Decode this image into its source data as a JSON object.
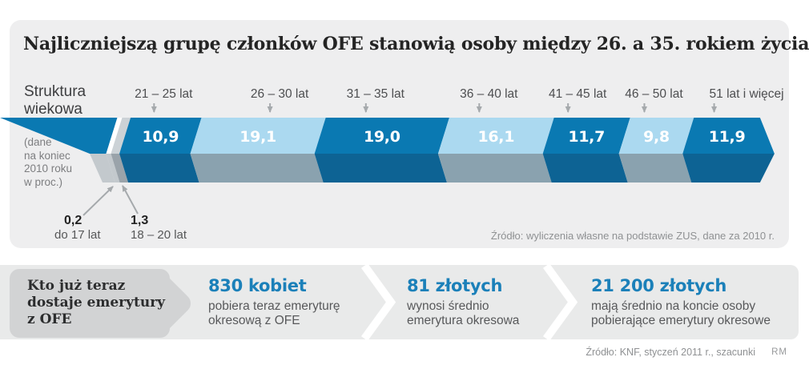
{
  "title": "Najliczniejszą grupę członków OFE stanowią osoby między 26. a 35. rokiem życia",
  "chart_data": {
    "type": "bar",
    "subtype": "stacked-horizontal-percent",
    "axis_label": "Struktura\nwiekowa",
    "note": "(dane\nna koniec\n2010 roku\nw proc.)",
    "source": "Źródło: wyliczenia własne na podstawie ZUS, dane za 2010 r.",
    "unit": "proc.",
    "categories": [
      "do 17 lat",
      "18 – 20 lat",
      "21 – 25 lat",
      "26 – 30 lat",
      "31 – 35 lat",
      "36 – 40 lat",
      "41 – 45 lat",
      "46 – 50 lat",
      "51 lat i więcej"
    ],
    "values": [
      0.2,
      1.3,
      10.9,
      19.1,
      19.0,
      16.1,
      11.7,
      9.8,
      11.9
    ],
    "value_labels": [
      "0,2",
      "1,3",
      "10,9",
      "19,1",
      "19,0",
      "16,1",
      "11,7",
      "9,8",
      "11,9"
    ],
    "segment_styles": [
      "white",
      "gray",
      "dark",
      "light",
      "dark",
      "light",
      "dark",
      "light",
      "dark"
    ],
    "colors": {
      "dark_front": "#0a79b2",
      "dark_side": "#0d6394",
      "light_front": "#abd9f0",
      "light_side": "#8aa2af",
      "white_front": "#ffffff",
      "white_side": "#c3c9cd",
      "gray_front": "#ccd2d6",
      "gray_side": "#9aa3aa",
      "value_text": "#ffffff",
      "label_text": "#4d4e50",
      "callout_value_text": "#222222",
      "callout_label_text": "#565758",
      "arrow": "#a5a9ac"
    }
  },
  "facts_band": {
    "headline": "Kto już teraz\ndostaje emerytury\nz OFE",
    "accent_color": "#1b80b9",
    "facts": [
      {
        "value": "830 kobiet",
        "desc": "pobiera teraz emeryturę\nokresową z OFE"
      },
      {
        "value": "81 złotych",
        "desc": "wynosi średnio\nemerytura okresowa"
      },
      {
        "value": "21 200 złotych",
        "desc": "mają średnio na koncie osoby\npobierające emerytury okresowe"
      }
    ],
    "source": "Źródło: KNF, styczeń 2011 r., szacunki"
  },
  "credit": "RM"
}
